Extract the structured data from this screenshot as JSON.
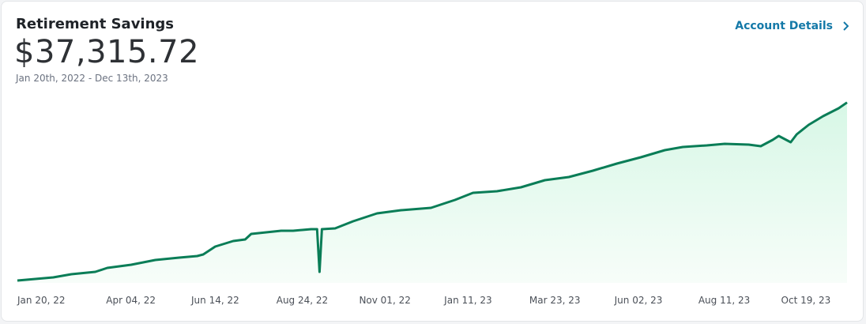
{
  "header": {
    "title": "Retirement Savings",
    "balance": "$37,315.72",
    "date_range": "Jan 20th, 2022 - Dec 13th, 2023",
    "link": "Account Details"
  },
  "chart_data": {
    "type": "area",
    "color": "#0a7d57",
    "x": [
      "2022-01-20",
      "2022-02-19",
      "2022-03-06",
      "2022-03-26",
      "2022-04-05",
      "2022-04-25",
      "2022-05-15",
      "2022-06-04",
      "2022-06-19",
      "2022-06-24",
      "2022-07-04",
      "2022-07-19",
      "2022-07-29",
      "2022-08-03",
      "2022-08-28",
      "2022-09-07",
      "2022-09-22",
      "2022-09-27",
      "2022-09-29",
      "2022-10-01",
      "2022-10-12",
      "2022-10-27",
      "2022-11-16",
      "2022-12-06",
      "2022-12-31",
      "2023-01-20",
      "2023-02-04",
      "2023-02-24",
      "2023-03-16",
      "2023-04-05",
      "2023-04-25",
      "2023-05-15",
      "2023-06-04",
      "2023-06-24",
      "2023-07-14",
      "2023-07-29",
      "2023-08-18",
      "2023-09-02",
      "2023-09-22",
      "2023-10-02",
      "2023-10-12",
      "2023-10-17",
      "2023-10-27",
      "2023-11-01",
      "2023-11-11",
      "2023-11-23",
      "2023-12-06",
      "2023-12-13"
    ],
    "values": [
      4438,
      5021,
      5605,
      6043,
      6772,
      7356,
      8232,
      8669,
      8961,
      9253,
      10712,
      11734,
      12026,
      13047,
      13631,
      13631,
      13923,
      13923,
      6043,
      13923,
      14068,
      15382,
      16841,
      17425,
      17862,
      19322,
      20635,
      20927,
      21656,
      22970,
      23553,
      24720,
      26034,
      27201,
      28515,
      29098,
      29390,
      29682,
      29536,
      29244,
      30411,
      31141,
      29974,
      31433,
      33184,
      34789,
      36248,
      37316
    ],
    "xlim": [
      "2022-01-20",
      "2023-12-13"
    ],
    "ylim": [
      4000,
      38000
    ],
    "xticks": [
      {
        "value": "2022-01-20",
        "label": "Jan 20, 22"
      },
      {
        "value": "2022-04-04",
        "label": "Apr 04, 22"
      },
      {
        "value": "2022-06-14",
        "label": "Jun 14, 22"
      },
      {
        "value": "2022-08-24",
        "label": "Aug 24, 22"
      },
      {
        "value": "2022-11-01",
        "label": "Nov 01, 22"
      },
      {
        "value": "2023-01-11",
        "label": "Jan 11, 23"
      },
      {
        "value": "2023-03-23",
        "label": "Mar 23, 23"
      },
      {
        "value": "2023-06-02",
        "label": "Jun 02, 23"
      },
      {
        "value": "2023-08-11",
        "label": "Aug 11, 23"
      },
      {
        "value": "2023-10-19",
        "label": "Oct 19, 23"
      }
    ]
  }
}
